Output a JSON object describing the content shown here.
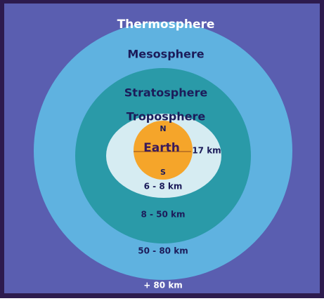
{
  "layers": [
    {
      "name": "Thermosphere",
      "range": "+ 80 km"
    },
    {
      "name": "Mesosphere",
      "range": "50 - 80 km"
    },
    {
      "name": "Stratosphere",
      "range": "8 - 50 km"
    },
    {
      "name": "Troposphere",
      "range": "6 - 8 km"
    }
  ],
  "troposphere_equator": "17 km",
  "earth": {
    "label": "Earth",
    "north": "N",
    "south": "S"
  }
}
